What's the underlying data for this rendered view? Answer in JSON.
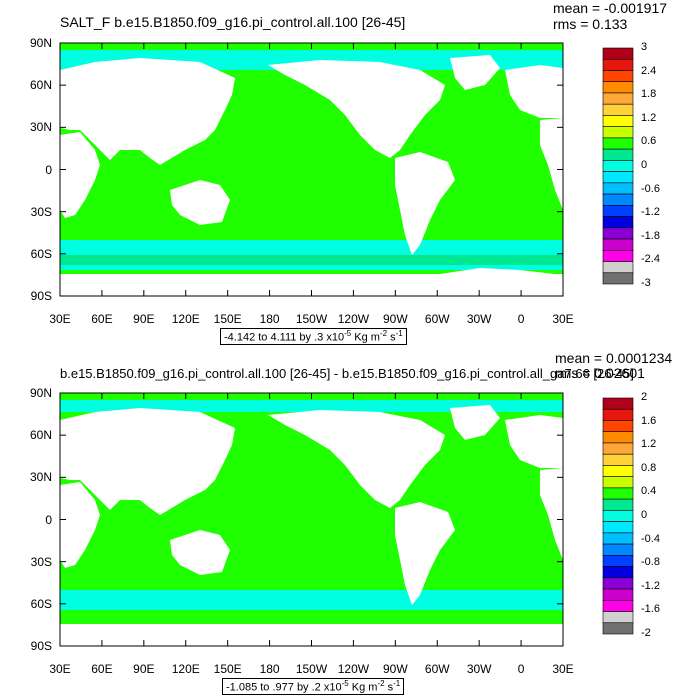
{
  "chart_data": [
    {
      "type": "heatmap",
      "title": "SALT_F b.e15.B1850.f09_g16.pi_control.all.100 [26-45]",
      "mean": "mean = -0.001917",
      "rms": "rms = 0.133",
      "range_prefix": "-4.142 to 4.111 by .3 x10",
      "range_exp1": "-5",
      "range_units": " Kg m",
      "range_exp2": "-2",
      "range_units2": " s",
      "range_exp3": "-1",
      "y_ticks": [
        "90N",
        "60N",
        "30N",
        "0",
        "30S",
        "60S",
        "90S"
      ],
      "x_ticks": [
        "30E",
        "60E",
        "90E",
        "120E",
        "150E",
        "180",
        "150W",
        "120W",
        "90W",
        "60W",
        "30W",
        "0",
        "30E"
      ],
      "colorbar_labels": [
        "3",
        "2.4",
        "1.8",
        "1.2",
        "0.6",
        "0",
        "-0.6",
        "-1.2",
        "-1.8",
        "-2.4",
        "-3"
      ],
      "colorbar_colors": [
        "#b0001a",
        "#e5170f",
        "#ff4500",
        "#ff8c00",
        "#ffa83a",
        "#ffd23a",
        "#ffff00",
        "#c8ff00",
        "#1fff00",
        "#00e890",
        "#00ffe0",
        "#00e8ff",
        "#00bfff",
        "#0088ff",
        "#0040ff",
        "#0000e0",
        "#8a00d4",
        "#cc00cc",
        "#ff00e8",
        "#d0d0d0",
        "#707070"
      ]
    },
    {
      "type": "heatmap",
      "title": "b.e15.B1850.f09_g16.pi_control.all.100 [26-45] - b.e15.B1850.f09_g16.pi_control.all_ga7.66 [26-45]",
      "mean": "mean = 0.0001234",
      "rms": "rms = 0.02601",
      "range_prefix": "-1.085 to .977 by .2 x10",
      "range_exp1": "-5",
      "range_units": " Kg m",
      "range_exp2": "-2",
      "range_units2": " s",
      "range_exp3": "-1",
      "y_ticks": [
        "90N",
        "60N",
        "30N",
        "0",
        "30S",
        "60S",
        "90S"
      ],
      "x_ticks": [
        "30E",
        "60E",
        "90E",
        "120E",
        "150E",
        "180",
        "150W",
        "120W",
        "90W",
        "60W",
        "30W",
        "0",
        "30E"
      ],
      "colorbar_labels": [
        "2",
        "1.6",
        "1.2",
        "0.8",
        "0.4",
        "0",
        "-0.4",
        "-0.8",
        "-1.2",
        "-1.6",
        "-2"
      ],
      "colorbar_colors": [
        "#b0001a",
        "#e5170f",
        "#ff4500",
        "#ff8c00",
        "#ffa83a",
        "#ffd23a",
        "#ffff00",
        "#c8ff00",
        "#1fff00",
        "#00e890",
        "#00ffe0",
        "#00e8ff",
        "#00bfff",
        "#0088ff",
        "#0040ff",
        "#0000e0",
        "#8a00d4",
        "#cc00cc",
        "#ff00e8",
        "#d0d0d0",
        "#707070"
      ]
    }
  ]
}
